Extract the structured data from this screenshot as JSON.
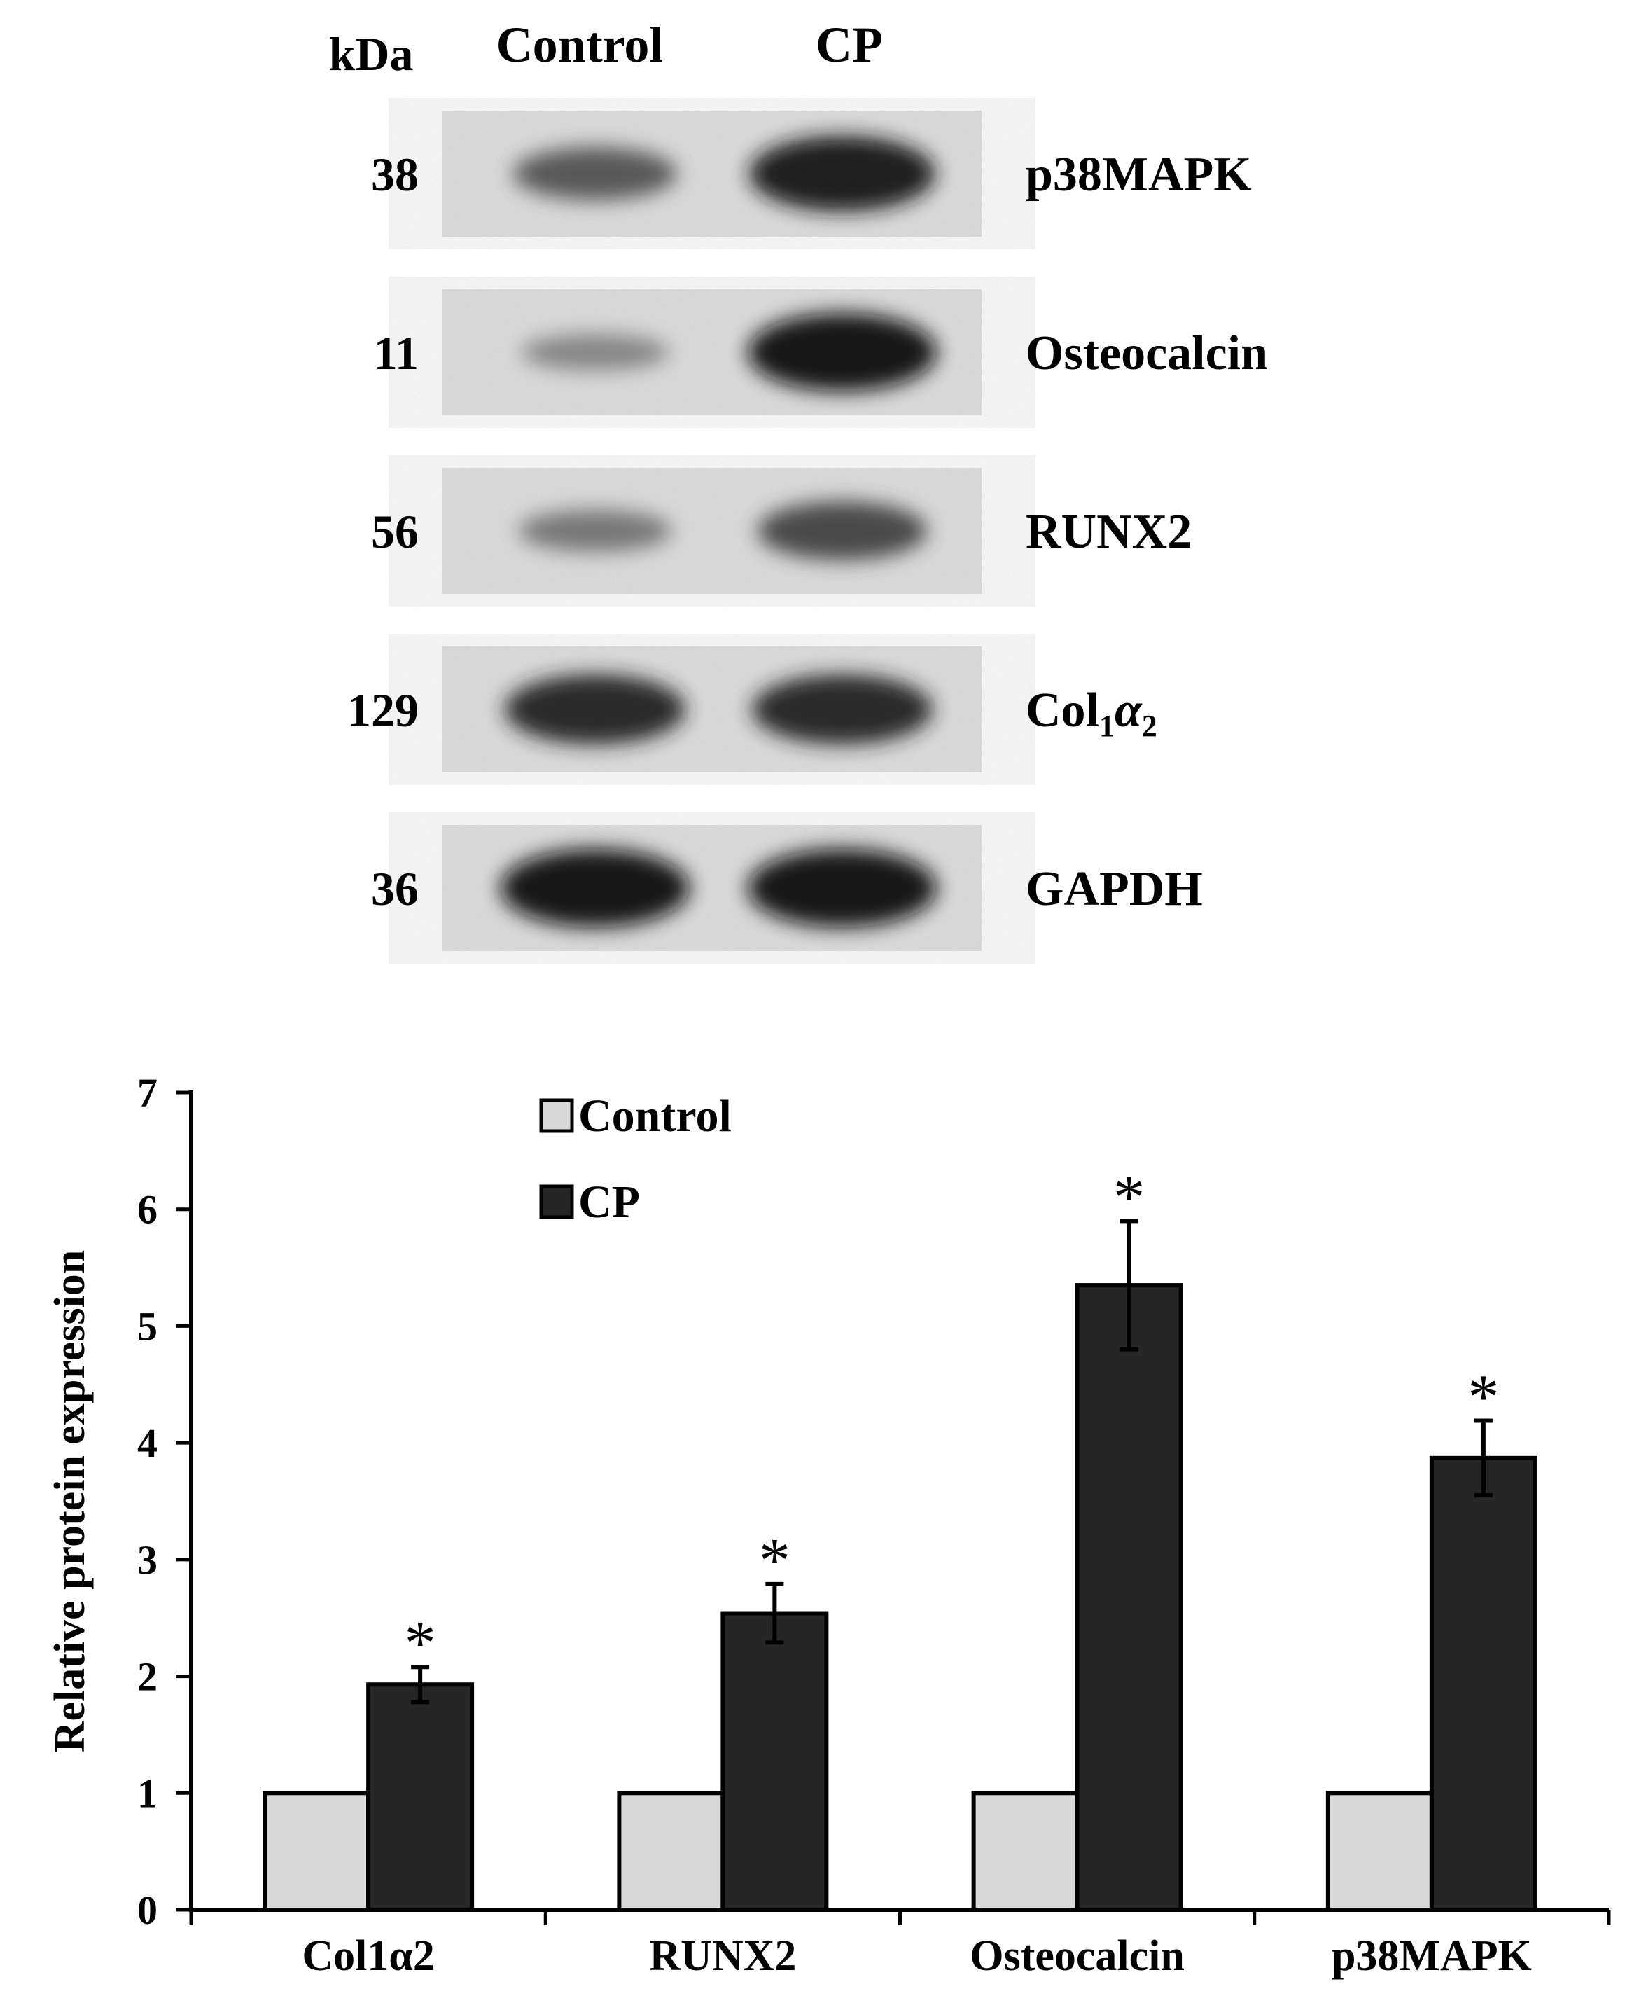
{
  "blot": {
    "kda_header": "kDa",
    "lane_labels": [
      "Control",
      "CP"
    ],
    "rows": [
      {
        "kda": "38",
        "protein": "p38MAPK",
        "control_intensity": 0.55,
        "cp_intensity": 0.95
      },
      {
        "kda": "11",
        "protein": "Osteocalcin",
        "control_intensity": 0.25,
        "cp_intensity": 1.0
      },
      {
        "kda": "56",
        "protein": "RUNX2",
        "control_intensity": 0.35,
        "cp_intensity": 0.65
      },
      {
        "kda": "129",
        "protein": "Col",
        "protein_sub1": "1",
        "protein_alpha": "α",
        "protein_sub2": "2",
        "control_intensity": 0.85,
        "cp_intensity": 0.85
      },
      {
        "kda": "36",
        "protein": "GAPDH",
        "control_intensity": 1.0,
        "cp_intensity": 1.0
      }
    ]
  },
  "chart_data": {
    "type": "bar",
    "categories": [
      "Col1α2",
      "RUNX2",
      "Osteocalcin",
      "p38MAPK"
    ],
    "series": [
      {
        "name": "Control",
        "values": [
          1,
          1,
          1,
          1
        ],
        "errors": [
          0,
          0,
          0,
          0
        ],
        "color": "#d9d9d9"
      },
      {
        "name": "CP",
        "values": [
          1.93,
          2.54,
          5.35,
          3.87
        ],
        "errors": [
          0.15,
          0.25,
          0.55,
          0.32
        ],
        "color": "#262626"
      }
    ],
    "significance": [
      "*",
      "*",
      "*",
      "*"
    ],
    "ylabel": "Relative protein expression",
    "xlabel": "",
    "ylim": [
      0,
      7
    ],
    "yticks": [
      0,
      1,
      2,
      3,
      4,
      5,
      6,
      7
    ],
    "grid": false,
    "legend_position": "top-left"
  }
}
